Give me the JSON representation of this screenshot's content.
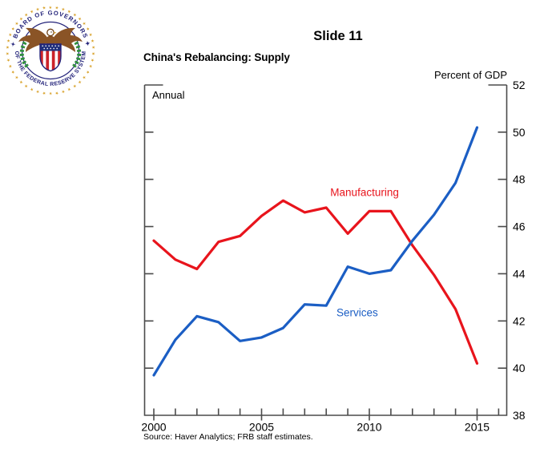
{
  "header": {
    "slide_label": "Slide 11",
    "chart_title": "China's Rebalancing: Supply"
  },
  "seal": {
    "top_text": "✦ BOARD OF GOVERNORS ✦",
    "bottom_text": "OF THE FEDERAL RESERVE SYSTEM"
  },
  "chart_data": {
    "type": "line",
    "title": "China's Rebalancing: Supply",
    "unit_label": "Percent of GDP",
    "frequency_label": "Annual",
    "x": [
      2000,
      2001,
      2002,
      2003,
      2004,
      2005,
      2006,
      2007,
      2008,
      2009,
      2010,
      2011,
      2012,
      2013,
      2014,
      2015
    ],
    "series": [
      {
        "name": "Manufacturing",
        "color": "#e8141c",
        "values": [
          45.4,
          44.6,
          44.2,
          45.35,
          45.6,
          46.45,
          47.1,
          46.6,
          46.8,
          45.7,
          46.65,
          46.65,
          45.2,
          43.95,
          42.5,
          40.2
        ]
      },
      {
        "name": "Services",
        "color": "#1b5ec4",
        "values": [
          39.7,
          41.2,
          42.2,
          41.95,
          41.15,
          41.3,
          41.7,
          42.7,
          42.65,
          44.3,
          44.0,
          44.15,
          45.4,
          46.5,
          47.85,
          50.2
        ]
      }
    ],
    "ylim": [
      38,
      52
    ],
    "yticks": [
      38,
      40,
      42,
      44,
      46,
      48,
      50,
      52
    ],
    "xticks_minor": {
      "start": 2000,
      "end": 2016,
      "step": 1
    },
    "xtick_labels": [
      2000,
      2005,
      2010,
      2015
    ],
    "grid": false,
    "legend": "inline-annotations",
    "annotations": [
      {
        "text": "Manufacturing",
        "x": 2009.78,
        "y": 47.45,
        "color": "#e8141c"
      },
      {
        "text": "Services",
        "x": 2009.44,
        "y": 42.35,
        "color": "#1b5ec4"
      }
    ]
  },
  "footer": {
    "source_note": "Source: Haver Analytics; FRB staff estimates."
  }
}
